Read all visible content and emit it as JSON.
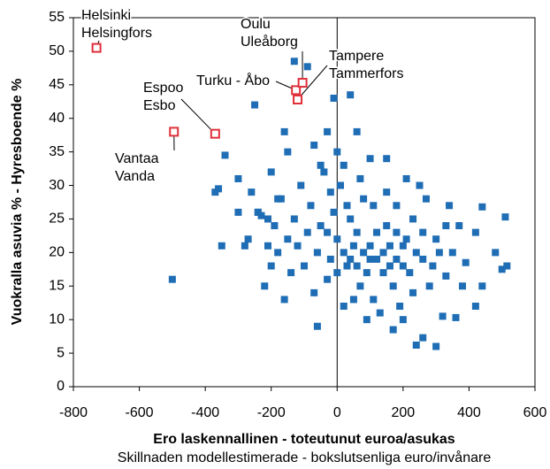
{
  "chart_data": {
    "type": "scatter",
    "xlabel": "Ero laskennallinen - toteutunut euroa/asukas",
    "xlabel2": "Skillnaden modellestimerade - bokslutsenliga euro/invånare",
    "ylabel": "Vuokralla asuvia % - Hyresboende %",
    "xlim": [
      -800,
      600
    ],
    "xticks": [
      -800,
      -600,
      -400,
      -200,
      0,
      200,
      400,
      600
    ],
    "ylim": [
      0,
      55
    ],
    "yticks": [
      0,
      5,
      10,
      15,
      20,
      25,
      30,
      35,
      40,
      45,
      50,
      55
    ],
    "color": "#1f6db5",
    "x": [
      -500,
      -370,
      -360,
      -350,
      -340,
      -300,
      -280,
      -250,
      -240,
      -230,
      -210,
      -200,
      -180,
      -160,
      -150,
      -130,
      -90,
      -60,
      -10,
      40,
      60,
      100,
      150,
      170,
      200,
      240,
      260,
      300,
      320,
      340,
      360,
      380,
      420,
      440,
      440,
      480,
      500,
      510,
      515,
      420,
      390,
      370,
      350,
      330,
      300,
      280,
      260,
      250,
      230,
      210,
      200,
      180,
      160,
      140,
      120,
      110,
      100,
      80,
      70,
      50,
      40,
      30,
      20,
      10,
      0,
      -10,
      -20,
      -30,
      -40,
      -50,
      -60,
      -70,
      -80,
      -90,
      -100,
      -110,
      -120,
      -130,
      -140,
      -150,
      -160,
      -170,
      -180,
      -190,
      -200,
      -210,
      -220,
      -240,
      -260,
      -270,
      -300,
      20,
      40,
      60,
      80,
      100,
      120,
      140,
      160,
      180,
      200,
      220,
      240,
      60,
      90,
      150,
      30,
      -30,
      0,
      170,
      230,
      190,
      130,
      90,
      50,
      -20,
      20,
      70,
      -70,
      -30,
      110,
      260,
      290,
      310,
      330,
      270,
      150,
      210,
      0,
      -50,
      180
    ],
    "y": [
      16,
      29,
      29.5,
      21,
      34.5,
      31,
      21,
      42,
      26,
      25.5,
      25,
      32,
      28,
      38,
      35,
      48.5,
      47.7,
      9,
      43,
      43.5,
      38,
      34,
      34,
      8.5,
      10,
      6.2,
      7.3,
      6,
      10.5,
      27,
      10.3,
      15,
      12,
      26.8,
      15,
      20,
      17.5,
      25.3,
      18,
      23,
      18.5,
      24,
      20,
      16.5,
      22,
      15,
      19,
      30,
      25,
      22,
      18,
      27,
      21,
      17,
      23,
      13,
      19,
      28,
      15,
      21,
      25,
      18,
      12,
      30,
      22,
      26,
      19,
      16,
      32,
      24,
      20,
      14,
      27,
      23,
      18,
      30,
      21,
      25,
      17,
      22,
      13,
      28,
      20,
      24,
      18,
      21,
      15,
      26,
      29,
      22,
      26,
      20,
      19,
      18,
      20,
      21,
      19,
      20,
      18,
      19,
      21,
      17,
      20,
      23,
      17,
      24,
      27,
      23,
      17,
      15,
      14,
      12,
      11,
      10,
      13,
      29,
      33,
      31,
      36,
      38,
      27,
      23,
      18,
      20,
      24,
      28,
      29,
      31,
      35,
      33,
      23
    ],
    "highlight_color": "#e0303a",
    "highlights": [
      {
        "label": [
          "Helsinki",
          "Helsingfors"
        ],
        "x": -730,
        "y": 50.5
      },
      {
        "label": [
          "Espoo",
          "Esbo"
        ],
        "x": -370,
        "y": 37.7
      },
      {
        "label": [
          "Vantaa",
          "Vanda"
        ],
        "x": -495,
        "y": 38
      },
      {
        "label": [
          "Turku - Åbo"
        ],
        "x": -125,
        "y": 44.2
      },
      {
        "label": [
          "Oulu",
          "Uleåborg"
        ],
        "x": -105,
        "y": 45.3
      },
      {
        "label": [
          "Tampere",
          "Tammerfors"
        ],
        "x": -120,
        "y": 42.8
      }
    ]
  }
}
